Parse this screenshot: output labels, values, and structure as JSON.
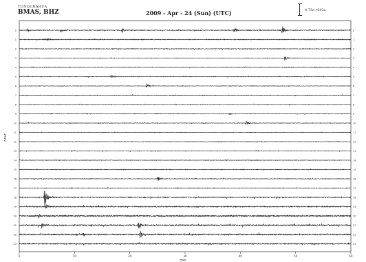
{
  "header": {
    "station_code": "TUNGURAHUA",
    "station_name": "BMAS, BHZ",
    "date_title": "2009 - Apr - 24 (Sun) (UTC)",
    "scale_label": "4.75e+003s"
  },
  "chart_data": {
    "type": "helicorder",
    "title": "2009 - Apr - 24 (Sun) (UTC)",
    "ylabel": "hour",
    "xlabel": "min",
    "xlim": [
      0,
      60
    ],
    "x_ticks": [
      0,
      10,
      20,
      30,
      40,
      50,
      60
    ],
    "hours": [
      0,
      1,
      2,
      3,
      4,
      5,
      6,
      7,
      8,
      9,
      10,
      11,
      12,
      13,
      14,
      15,
      16,
      17,
      18,
      19,
      20,
      21,
      22,
      23
    ],
    "line_colors": [
      "#333333",
      "#2b2b2b",
      "#262626"
    ],
    "noise_levels": [
      0.55,
      0.45,
      0.35,
      0.3,
      0.3,
      0.35,
      0.3,
      0.3,
      0.3,
      0.35,
      0.3,
      0.3,
      0.3,
      0.3,
      0.35,
      0.35,
      0.35,
      0.35,
      0.55,
      0.65,
      0.9,
      0.85,
      0.9,
      0.7
    ],
    "events": [
      {
        "hour": 0,
        "minute": 1.5,
        "amplitude": 3.0
      },
      {
        "hour": 0,
        "minute": 7.5,
        "amplitude": 3.0
      },
      {
        "hour": 0,
        "minute": 18.5,
        "amplitude": 5.0
      },
      {
        "hour": 0,
        "minute": 38.8,
        "amplitude": 6.0
      },
      {
        "hour": 0,
        "minute": 47.5,
        "amplitude": 7.0
      },
      {
        "hour": 1,
        "minute": 5.0,
        "amplitude": 2.5
      },
      {
        "hour": 3,
        "minute": 48.0,
        "amplitude": 5.0
      },
      {
        "hour": 5,
        "minute": 16.5,
        "amplitude": 3.5
      },
      {
        "hour": 6,
        "minute": 23.0,
        "amplitude": 5.0
      },
      {
        "hour": 9,
        "minute": 38.0,
        "amplitude": 2.0
      },
      {
        "hour": 10,
        "minute": 41.0,
        "amplitude": 4.0
      },
      {
        "hour": 16,
        "minute": 25.0,
        "amplitude": 4.0
      },
      {
        "hour": 18,
        "minute": 4.5,
        "amplitude": 18.0
      },
      {
        "hour": 19,
        "minute": 4.8,
        "amplitude": 5.0
      },
      {
        "hour": 20,
        "minute": 3.5,
        "amplitude": 4.0
      },
      {
        "hour": 21,
        "minute": 4.0,
        "amplitude": 5.0
      },
      {
        "hour": 21,
        "minute": 21.5,
        "amplitude": 9.0
      },
      {
        "hour": 22,
        "minute": 21.8,
        "amplitude": 7.0
      },
      {
        "hour": 22,
        "minute": 11.5,
        "amplitude": 4.0
      }
    ]
  }
}
